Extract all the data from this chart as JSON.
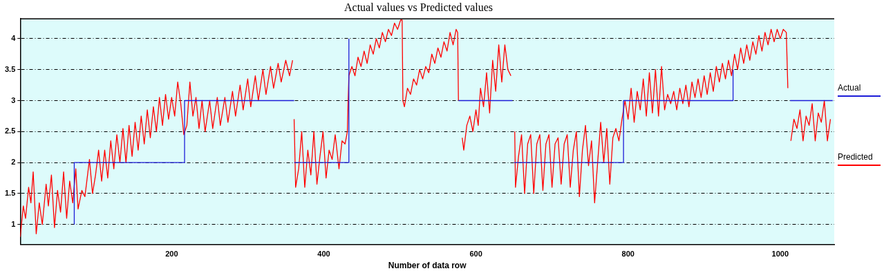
{
  "chart_data": {
    "type": "line",
    "title": "Actual values vs Predicted values",
    "xlabel": "Number of data row",
    "xlim": [
      1,
      1071
    ],
    "xticks": [
      200,
      400,
      600,
      800,
      1000
    ],
    "ylim": [
      0.68,
      4.32
    ],
    "yticks": [
      1,
      1.5,
      2,
      2.5,
      3,
      3.5,
      4
    ],
    "grid": "y",
    "legend": "right",
    "marker": "none",
    "series": [
      {
        "name": "Actual",
        "color": "#1c1cd8",
        "x": [
          72,
          72,
          217,
          217,
          217,
          361,
          null,
          361,
          433,
          433,
          null,
          577,
          648,
          null,
          650,
          794,
          794,
          938,
          938,
          null,
          1013,
          1069
        ],
        "values": [
          1,
          2,
          2,
          2.5,
          3,
          3,
          null,
          2,
          2,
          4,
          null,
          3,
          3,
          null,
          2,
          2,
          3,
          3,
          3.5,
          null,
          3,
          3
        ]
      },
      {
        "name": "Predicted",
        "color": "#ff0000",
        "x": [
          1,
          5,
          8,
          12,
          15,
          18,
          22,
          26,
          30,
          35,
          38,
          42,
          46,
          50,
          54,
          58,
          62,
          66,
          70,
          74,
          77,
          82,
          86,
          92,
          96,
          100,
          104,
          108,
          112,
          116,
          120,
          124,
          128,
          132,
          136,
          140,
          144,
          148,
          152,
          156,
          160,
          164,
          168,
          172,
          176,
          180,
          184,
          188,
          192,
          196,
          200,
          204,
          208,
          212,
          216,
          220,
          224,
          228,
          232,
          236,
          240,
          244,
          250,
          254,
          260,
          264,
          270,
          274,
          280,
          284,
          290,
          294,
          300,
          304,
          310,
          314,
          320,
          324,
          330,
          334,
          340,
          344,
          350,
          355,
          359,
          null,
          361,
          363,
          367,
          371,
          375,
          379,
          383,
          387,
          391,
          395,
          399,
          403,
          407,
          411,
          415,
          420,
          424,
          428,
          431,
          432,
          433,
          437,
          441,
          445,
          449,
          453,
          457,
          461,
          465,
          469,
          473,
          477,
          481,
          485,
          489,
          493,
          497,
          501,
          503,
          504,
          506,
          510,
          514,
          518,
          522,
          526,
          530,
          534,
          538,
          542,
          546,
          550,
          554,
          558,
          562,
          566,
          570,
          574,
          576,
          577,
          null,
          582,
          584,
          588,
          592,
          596,
          600,
          603,
          606,
          610,
          614,
          618,
          622,
          626,
          630,
          634,
          638,
          642,
          646,
          null,
          651,
          652,
          656,
          660,
          664,
          668,
          672,
          676,
          680,
          684,
          688,
          692,
          696,
          700,
          704,
          708,
          712,
          716,
          720,
          724,
          728,
          732,
          736,
          740,
          744,
          748,
          752,
          756,
          760,
          764,
          768,
          772,
          776,
          780,
          784,
          788,
          792,
          796,
          800,
          804,
          808,
          812,
          816,
          820,
          824,
          828,
          832,
          836,
          840,
          844,
          848,
          852,
          856,
          860,
          864,
          868,
          872,
          876,
          880,
          884,
          888,
          892,
          896,
          900,
          904,
          908,
          912,
          916,
          920,
          924,
          928,
          932,
          936,
          940,
          944,
          948,
          952,
          956,
          960,
          964,
          968,
          972,
          976,
          980,
          984,
          988,
          992,
          996,
          1000,
          1004,
          1008,
          1010,
          null,
          1014,
          1018,
          1022,
          1026,
          1030,
          1034,
          1038,
          1042,
          1046,
          1050,
          1054,
          1058,
          1062,
          1066
        ],
        "values": [
          0.8,
          1.3,
          1.1,
          1.6,
          1.35,
          1.85,
          0.85,
          1.35,
          1.0,
          1.65,
          1.3,
          1.8,
          0.95,
          1.55,
          1.2,
          1.85,
          1.1,
          1.7,
          1.35,
          1.9,
          1.25,
          1.55,
          1.45,
          2.05,
          1.5,
          1.8,
          2.2,
          1.7,
          2.2,
          1.75,
          2.35,
          1.9,
          2.45,
          2.0,
          2.55,
          2.0,
          2.6,
          2.1,
          2.65,
          2.2,
          2.75,
          2.3,
          2.85,
          2.4,
          2.9,
          2.5,
          3.05,
          2.6,
          3.1,
          2.7,
          3.05,
          2.75,
          3.3,
          2.95,
          2.45,
          2.6,
          3.3,
          2.75,
          3.05,
          2.55,
          3.0,
          2.5,
          3.0,
          2.55,
          3.05,
          2.6,
          3.05,
          2.65,
          3.15,
          2.75,
          3.25,
          2.85,
          3.35,
          2.9,
          3.4,
          3.0,
          3.5,
          3.1,
          3.55,
          3.2,
          3.6,
          3.3,
          3.65,
          3.4,
          3.65,
          null,
          2.7,
          1.6,
          1.9,
          2.5,
          1.6,
          2.2,
          1.8,
          2.5,
          1.65,
          2.1,
          2.5,
          1.75,
          2.2,
          2.05,
          2.45,
          1.9,
          2.35,
          2.3,
          2.5,
          3.0,
          3.4,
          3.55,
          3.4,
          3.7,
          3.55,
          3.8,
          3.6,
          3.9,
          3.75,
          4.0,
          3.85,
          4.1,
          3.95,
          4.15,
          4.05,
          4.25,
          4.15,
          4.3,
          4.3,
          3.0,
          2.9,
          3.2,
          3.1,
          3.35,
          3.25,
          3.5,
          3.35,
          3.55,
          3.45,
          3.75,
          3.6,
          3.85,
          3.7,
          3.95,
          3.8,
          4.1,
          3.9,
          4.15,
          4.1,
          3.0,
          null,
          2.4,
          2.2,
          2.6,
          2.75,
          2.5,
          2.85,
          2.6,
          3.2,
          2.9,
          3.45,
          2.8,
          3.65,
          3.15,
          3.9,
          3.3,
          3.9,
          3.5,
          3.4,
          null,
          2.5,
          1.6,
          2.1,
          2.45,
          1.5,
          2.3,
          2.45,
          1.5,
          2.3,
          2.45,
          1.55,
          2.3,
          2.45,
          1.6,
          2.3,
          2.4,
          1.65,
          2.3,
          2.45,
          1.6,
          2.2,
          2.5,
          1.45,
          2.2,
          2.6,
          1.95,
          2.35,
          1.35,
          2.0,
          2.65,
          2.0,
          2.55,
          1.65,
          2.4,
          2.55,
          2.35,
          2.7,
          3.0,
          2.7,
          3.2,
          2.65,
          3.15,
          2.85,
          3.35,
          2.75,
          3.45,
          2.8,
          3.5,
          2.75,
          3.55,
          2.85,
          3.1,
          2.95,
          3.15,
          2.85,
          3.2,
          2.95,
          3.25,
          2.9,
          3.3,
          3.05,
          3.35,
          3.05,
          3.4,
          3.1,
          3.45,
          3.15,
          3.55,
          3.3,
          3.6,
          3.35,
          3.65,
          3.4,
          3.75,
          3.5,
          3.85,
          3.6,
          3.9,
          3.65,
          3.95,
          3.75,
          4.05,
          3.8,
          4.1,
          3.9,
          4.15,
          3.95,
          4.15,
          4.0,
          4.15,
          4.1,
          3.2,
          null,
          2.35,
          2.7,
          2.55,
          2.85,
          2.35,
          2.75,
          2.6,
          2.95,
          2.35,
          2.8,
          2.65,
          3.0,
          2.35,
          2.7
        ]
      }
    ]
  }
}
